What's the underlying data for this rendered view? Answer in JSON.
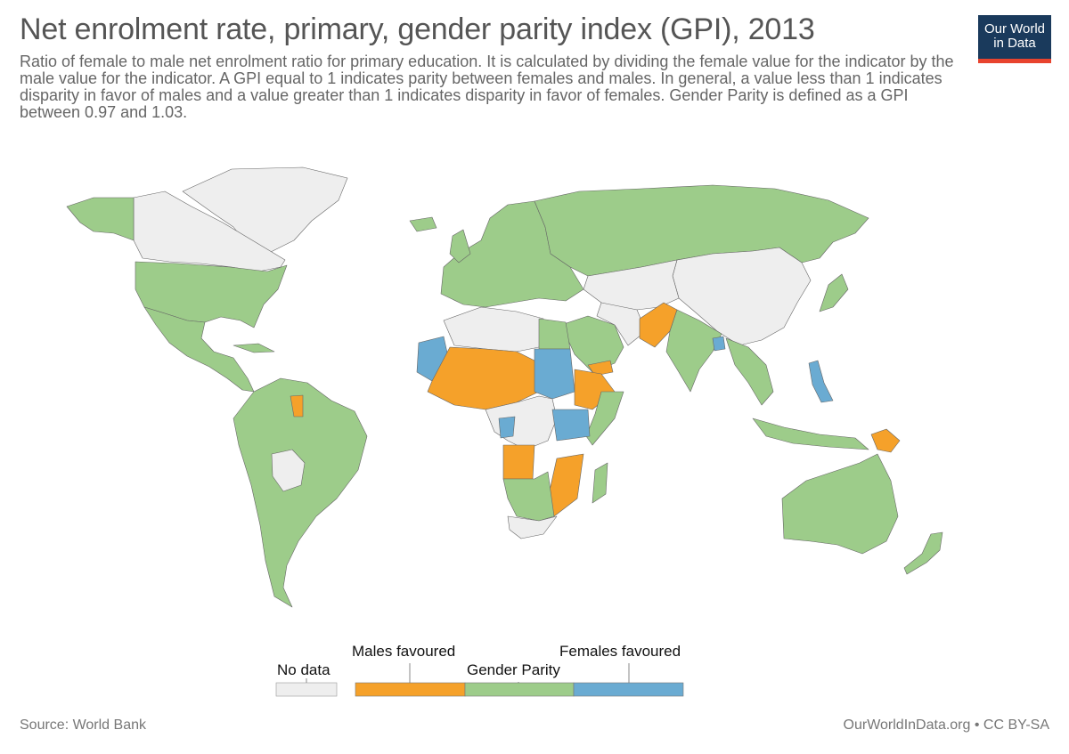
{
  "header": {
    "title": "Net enrolment rate, primary, gender parity index (GPI), 2013",
    "subtitle": "Ratio of female to male net enrolment ratio for primary education. It is calculated by dividing the female value for the indicator by the male value for the indicator. A GPI equal to 1 indicates parity between females and males. In general, a value less than 1 indicates disparity in favor of males and a value greater than 1 indicates disparity in favor of females. Gender Parity is defined as a GPI between 0.97 and 1.03."
  },
  "logo": {
    "line1": "Our World",
    "line2": "in Data"
  },
  "colors": {
    "no_data": "#eeeeee",
    "males_favoured": "#f5a12a",
    "gender_parity": "#9dcc8a",
    "females_favoured": "#6aabd2"
  },
  "legend": {
    "no_data": "No data",
    "males_favoured": "Males favoured",
    "gender_parity": "Gender Parity",
    "females_favoured": "Females favoured"
  },
  "footer": {
    "source": "Source: World Bank",
    "license": "OurWorldInData.org • CC BY-SA"
  }
}
